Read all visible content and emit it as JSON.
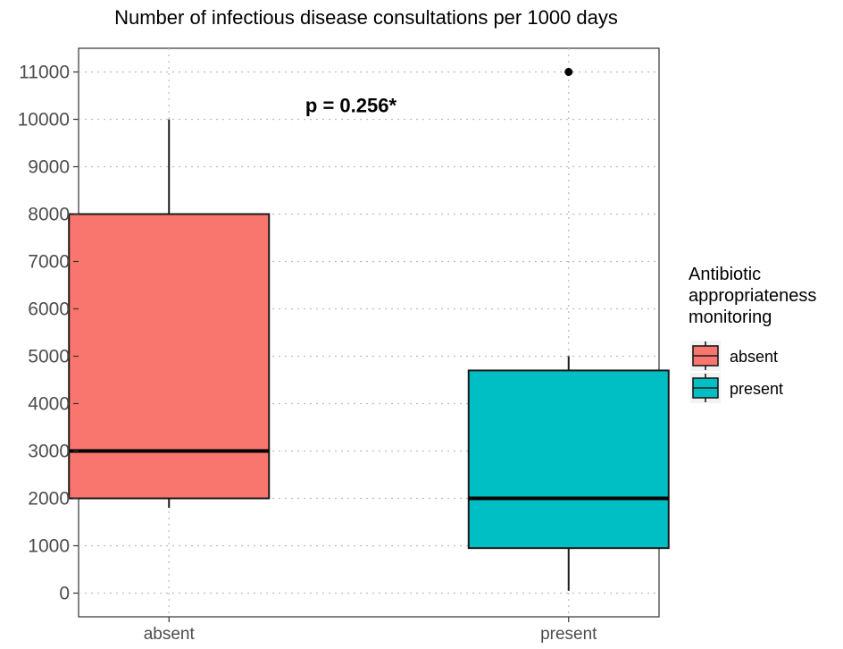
{
  "chart_data": {
    "type": "box",
    "title": "Number of infectious disease consultations per 1000 days",
    "xlabel": "",
    "ylabel": "",
    "ylim": [
      -500,
      11500
    ],
    "yticks": [
      0,
      1000,
      2000,
      3000,
      4000,
      5000,
      6000,
      7000,
      8000,
      9000,
      10000,
      11000
    ],
    "categories": [
      "absent",
      "present"
    ],
    "grid": true,
    "boxes": [
      {
        "name": "absent",
        "min": 1800,
        "q1": 2000,
        "median": 3000,
        "q3": 8000,
        "max": 10000,
        "outliers": [],
        "color": "#F8766D"
      },
      {
        "name": "present",
        "min": 50,
        "q1": 950,
        "median": 2000,
        "q3": 4700,
        "max": 5000,
        "outliers": [
          11000
        ],
        "color": "#00BFC4"
      }
    ],
    "annotation": {
      "text": "p = 0.256*",
      "x_between": [
        0,
        1
      ],
      "y": 10300
    },
    "legend": {
      "title_lines": [
        "Antibiotic",
        "appropriateness",
        "monitoring"
      ],
      "position": "right",
      "entries": [
        {
          "label": "absent",
          "color": "#F8766D"
        },
        {
          "label": "present",
          "color": "#00BFC4"
        }
      ]
    }
  }
}
